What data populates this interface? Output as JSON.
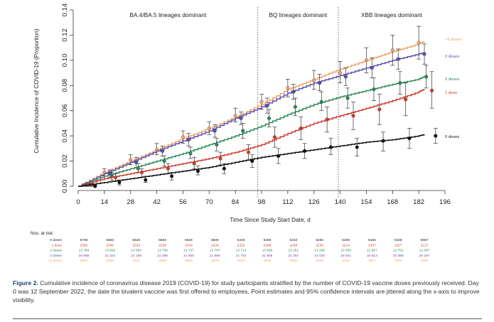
{
  "chart_data": {
    "type": "line",
    "ylabel": "Cumulative Incidence of COVID-19 (Proportion)",
    "xlabel": "Time Since Study Start Date, d",
    "xlim": [
      0,
      196
    ],
    "ylim": [
      0,
      0.14
    ],
    "x_ticks": [
      0,
      14,
      28,
      42,
      56,
      70,
      84,
      98,
      112,
      126,
      140,
      154,
      168,
      182,
      196
    ],
    "y_ticks": [
      "0.00",
      "0.02",
      "0.04",
      "0.06",
      "0.08",
      "0.10",
      "0.12",
      "0.14"
    ],
    "grid": false,
    "periods": [
      {
        "label": "BA.4/BA.5 lineages dominant",
        "start": 0,
        "end": 96
      },
      {
        "label": "BQ lineages dominant",
        "start": 96,
        "end": 139
      },
      {
        "label": "XBB lineages dominant",
        "start": 139,
        "end": 196
      }
    ],
    "divider_days": [
      96,
      139
    ],
    "series": [
      {
        "name": ">3 doses",
        "color": "#f0a46b",
        "x": [
          0,
          14,
          28,
          42,
          56,
          70,
          84,
          98,
          112,
          126,
          140,
          154,
          168,
          182,
          185
        ],
        "y": [
          0,
          0.011,
          0.02,
          0.029,
          0.038,
          0.046,
          0.055,
          0.065,
          0.077,
          0.085,
          0.093,
          0.1,
          0.107,
          0.113,
          0.115
        ],
        "points": [
          [
            3,
            0.001,
            0.001,
            0.001
          ],
          [
            14,
            0.011,
            0.008,
            0.014
          ],
          [
            28,
            0.021,
            0.017,
            0.025
          ],
          [
            42,
            0.029,
            0.025,
            0.034
          ],
          [
            56,
            0.039,
            0.034,
            0.044
          ],
          [
            70,
            0.046,
            0.041,
            0.051
          ],
          [
            84,
            0.056,
            0.051,
            0.062
          ],
          [
            98,
            0.067,
            0.061,
            0.073
          ],
          [
            112,
            0.078,
            0.071,
            0.085
          ],
          [
            126,
            0.084,
            0.077,
            0.092
          ],
          [
            140,
            0.09,
            0.082,
            0.099
          ],
          [
            154,
            0.1,
            0.09,
            0.11
          ],
          [
            168,
            0.108,
            0.096,
            0.12
          ],
          [
            182,
            0.114,
            0.101,
            0.127
          ]
        ]
      },
      {
        "name": "3 doses",
        "color": "#5b4fb0",
        "x": [
          0,
          14,
          28,
          42,
          56,
          70,
          84,
          98,
          112,
          126,
          140,
          154,
          168,
          182,
          185
        ],
        "y": [
          0,
          0.01,
          0.019,
          0.028,
          0.036,
          0.044,
          0.054,
          0.063,
          0.074,
          0.082,
          0.088,
          0.094,
          0.1,
          0.105,
          0.106
        ],
        "points": [
          [
            4,
            0.001,
            0.0,
            0.002
          ],
          [
            17,
            0.01,
            0.007,
            0.013
          ],
          [
            31,
            0.019,
            0.015,
            0.023
          ],
          [
            45,
            0.028,
            0.024,
            0.032
          ],
          [
            59,
            0.037,
            0.032,
            0.042
          ],
          [
            73,
            0.044,
            0.039,
            0.049
          ],
          [
            87,
            0.054,
            0.049,
            0.059
          ],
          [
            101,
            0.064,
            0.058,
            0.07
          ],
          [
            115,
            0.075,
            0.069,
            0.081
          ],
          [
            129,
            0.082,
            0.076,
            0.089
          ],
          [
            143,
            0.087,
            0.08,
            0.094
          ],
          [
            157,
            0.094,
            0.086,
            0.102
          ],
          [
            171,
            0.101,
            0.093,
            0.109
          ],
          [
            185,
            0.105,
            0.097,
            0.113
          ]
        ]
      },
      {
        "name": "2 doses",
        "color": "#2a8a5a",
        "x": [
          0,
          14,
          28,
          42,
          56,
          70,
          84,
          98,
          112,
          126,
          140,
          154,
          168,
          182,
          185
        ],
        "y": [
          0,
          0.008,
          0.014,
          0.02,
          0.026,
          0.033,
          0.04,
          0.048,
          0.057,
          0.065,
          0.071,
          0.076,
          0.081,
          0.085,
          0.087
        ],
        "points": [
          [
            5,
            0.001,
            0.0,
            0.002
          ],
          [
            18,
            0.008,
            0.005,
            0.011
          ],
          [
            32,
            0.014,
            0.011,
            0.018
          ],
          [
            46,
            0.02,
            0.016,
            0.024
          ],
          [
            60,
            0.026,
            0.022,
            0.031
          ],
          [
            74,
            0.033,
            0.028,
            0.038
          ],
          [
            88,
            0.044,
            0.038,
            0.05
          ],
          [
            102,
            0.054,
            0.047,
            0.061
          ],
          [
            116,
            0.063,
            0.056,
            0.07
          ],
          [
            130,
            0.067,
            0.06,
            0.075
          ],
          [
            144,
            0.07,
            0.062,
            0.078
          ],
          [
            158,
            0.077,
            0.068,
            0.086
          ],
          [
            172,
            0.082,
            0.073,
            0.091
          ],
          [
            186,
            0.087,
            0.078,
            0.096
          ]
        ]
      },
      {
        "name": "1 dose",
        "color": "#d23a2e",
        "x": [
          0,
          14,
          28,
          42,
          56,
          70,
          84,
          98,
          112,
          126,
          140,
          154,
          168,
          182,
          185
        ],
        "y": [
          0,
          0.006,
          0.01,
          0.014,
          0.018,
          0.022,
          0.027,
          0.033,
          0.042,
          0.05,
          0.056,
          0.062,
          0.068,
          0.075,
          0.077
        ],
        "points": [
          [
            7,
            0.001,
            0.0,
            0.002
          ],
          [
            20,
            0.007,
            0.004,
            0.01
          ],
          [
            34,
            0.011,
            0.007,
            0.014
          ],
          [
            48,
            0.014,
            0.01,
            0.018
          ],
          [
            62,
            0.018,
            0.014,
            0.023
          ],
          [
            76,
            0.022,
            0.017,
            0.027
          ],
          [
            91,
            0.027,
            0.021,
            0.033
          ],
          [
            105,
            0.039,
            0.031,
            0.047
          ],
          [
            119,
            0.046,
            0.037,
            0.055
          ],
          [
            133,
            0.053,
            0.043,
            0.063
          ],
          [
            147,
            0.056,
            0.045,
            0.067
          ],
          [
            161,
            0.061,
            0.049,
            0.073
          ],
          [
            175,
            0.069,
            0.056,
            0.082
          ],
          [
            189,
            0.076,
            0.062,
            0.091
          ]
        ]
      },
      {
        "name": "0 doses",
        "color": "#111111",
        "x": [
          0,
          14,
          28,
          42,
          56,
          70,
          84,
          98,
          112,
          126,
          140,
          154,
          168,
          182,
          185
        ],
        "y": [
          0,
          0.003,
          0.006,
          0.009,
          0.012,
          0.015,
          0.019,
          0.023,
          0.026,
          0.029,
          0.032,
          0.035,
          0.037,
          0.04,
          0.041
        ],
        "points": [
          [
            9,
            0.0,
            0.0,
            0.001
          ],
          [
            22,
            0.003,
            0.001,
            0.005
          ],
          [
            36,
            0.005,
            0.003,
            0.008
          ],
          [
            50,
            0.008,
            0.005,
            0.011
          ],
          [
            64,
            0.012,
            0.009,
            0.016
          ],
          [
            78,
            0.014,
            0.01,
            0.018
          ],
          [
            93,
            0.02,
            0.015,
            0.025
          ],
          [
            107,
            0.024,
            0.018,
            0.03
          ],
          [
            121,
            0.028,
            0.022,
            0.034
          ],
          [
            135,
            0.031,
            0.025,
            0.038
          ],
          [
            149,
            0.031,
            0.024,
            0.038
          ],
          [
            163,
            0.036,
            0.028,
            0.043
          ],
          [
            177,
            0.038,
            0.03,
            0.046
          ],
          [
            191,
            0.04,
            0.034,
            0.046
          ]
        ]
      }
    ]
  },
  "risk_table": {
    "title": "Nos. at risk:",
    "rows": [
      {
        "label": "0 doses",
        "color": "#111111",
        "values": [
          "5738",
          "5683",
          "5626",
          "5593",
          "5526",
          "5506",
          "5449",
          "5406",
          "5333",
          "5260",
          "5208",
          "5156",
          "5108",
          "5067"
        ]
      },
      {
        "label": "1 dose",
        "color": "#d23a2e",
        "values": [
          "2350",
          "2340",
          "2333",
          "2328",
          "2334",
          "2328",
          "2322",
          "2299",
          "2288",
          "2236",
          "2214",
          "2187",
          "2157",
          "2127"
        ]
      },
      {
        "label": "2 doses",
        "color": "#2a8a5a",
        "values": [
          "13 784",
          "13 693",
          "13 684",
          "13 758",
          "13 757",
          "13 787",
          "13 714",
          "13 569",
          "13 351",
          "13 200",
          "13 059",
          "12 907",
          "12 751",
          "12 597"
        ]
      },
      {
        "label": "3 doses",
        "color": "#5b4fb0",
        "values": [
          "20 988",
          "21 524",
          "21 158",
          "21 388",
          "21 509",
          "21 696",
          "21 702",
          "21 555",
          "21 257",
          "21 020",
          "20 841",
          "20 613",
          "20 398",
          "20 187"
        ]
      },
      {
        "label": ">3 doses",
        "color": "#f0a46b",
        "values": [
          "3634",
          "3630",
          "3631",
          "3658",
          "3665",
          "3675",
          "3642",
          "3616",
          "3546",
          "3486",
          "3452",
          "3407",
          "3369",
          "3336"
        ]
      }
    ]
  },
  "caption": {
    "label": "Figure 2.",
    "text": "Cumulative incidence of coronavirus disease 2019 (COVID-19) for study participants stratified by the number of COVID-19 vaccine doses previously received. Day 0 was 12 September 2022, the date the bivalent vaccine was first offered to employees. Point estimates and 95% confidence intervals are jittered along the x-axis to improve visibility."
  }
}
